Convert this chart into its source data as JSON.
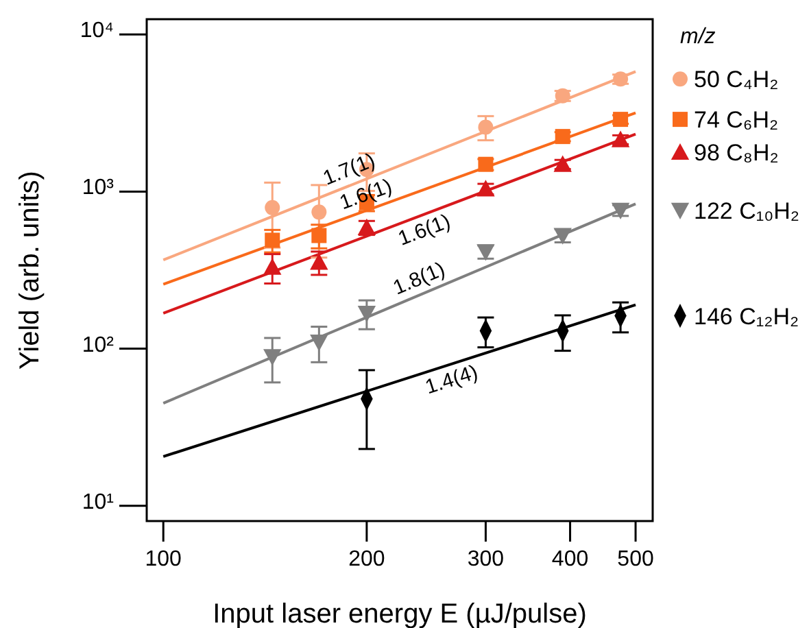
{
  "chart_data": {
    "type": "scatter",
    "xlabel": "Input laser energy E (µJ/pulse)",
    "ylabel": "Yield (arb. units)",
    "legend_title": "m/z",
    "legend": "right",
    "log": "xy",
    "xlim": [
      94.5,
      530
    ],
    "ylim": [
      8,
      12500
    ],
    "xticks": [
      100,
      200,
      300,
      400,
      500
    ],
    "yticks": [
      {
        "value": 10,
        "label": "10¹"
      },
      {
        "value": 100,
        "label": "10²"
      },
      {
        "value": 1000,
        "label": "10³"
      },
      {
        "value": 10000,
        "label": "10⁴"
      }
    ],
    "series": [
      {
        "name": "50 C₄H₂",
        "color": "#f9a77f",
        "marker": "circle",
        "x": [
          145,
          170,
          200,
          300,
          390,
          475
        ],
        "values": [
          790,
          740,
          1380,
          2570,
          4070,
          5200
        ],
        "errors": [
          350,
          360,
          370,
          450,
          300,
          350
        ]
      },
      {
        "name": "74 C₆H₂",
        "color": "#f96a1b",
        "marker": "square",
        "x": [
          145,
          170,
          200,
          300,
          390,
          475
        ],
        "values": [
          490,
          525,
          850,
          1490,
          2240,
          2880
        ],
        "errors": [
          80,
          90,
          100,
          120,
          150,
          180
        ]
      },
      {
        "name": "98 C₈H₂",
        "color": "#d7191c",
        "marker": "triangle",
        "x": [
          145,
          170,
          200,
          300,
          390,
          475
        ],
        "values": [
          330,
          355,
          590,
          1040,
          1490,
          2140
        ],
        "errors": [
          70,
          60,
          60,
          80,
          100,
          140
        ]
      },
      {
        "name": "122 C₁₀H₂",
        "color": "#7f7f7f",
        "marker": "triangle-down",
        "x": [
          145,
          170,
          200,
          300,
          390,
          475
        ],
        "values": [
          89,
          110,
          168,
          414,
          525,
          760
        ],
        "errors": [
          28,
          28,
          35,
          40,
          50,
          60
        ]
      },
      {
        "name": "146 C₁₂H₂",
        "color": "#000000",
        "marker": "diamond",
        "x": [
          200,
          300,
          390,
          475
        ],
        "values": [
          48,
          130,
          130,
          162
        ],
        "errors": [
          25,
          28,
          33,
          35
        ]
      },
      {
        "type": "line",
        "color": "#f9a77f",
        "x": [
          100,
          500
        ],
        "values": [
          367,
          5800
        ]
      },
      {
        "type": "line",
        "color": "#f96a1b",
        "x": [
          100,
          500
        ],
        "values": [
          257,
          3170
        ]
      },
      {
        "type": "line",
        "color": "#d7191c",
        "x": [
          100,
          500
        ],
        "values": [
          168,
          2320
        ]
      },
      {
        "type": "line",
        "color": "#7f7f7f",
        "x": [
          100,
          500
        ],
        "values": [
          45,
          835
        ]
      },
      {
        "type": "line",
        "color": "#000000",
        "x": [
          100,
          500
        ],
        "values": [
          20.6,
          190
        ]
      }
    ],
    "annotations": [
      {
        "text": "1.7(1)",
        "x": 192,
        "y": 1123
      },
      {
        "text": "1.6(1)",
        "x": 203,
        "y": 776
      },
      {
        "text": "1.6(1)",
        "x": 239,
        "y": 696
      },
      {
        "text": "1.8(1)",
        "x": 244,
        "y": 227
      },
      {
        "text": "1.4(4)",
        "x": 263,
        "y": 78
      }
    ]
  }
}
